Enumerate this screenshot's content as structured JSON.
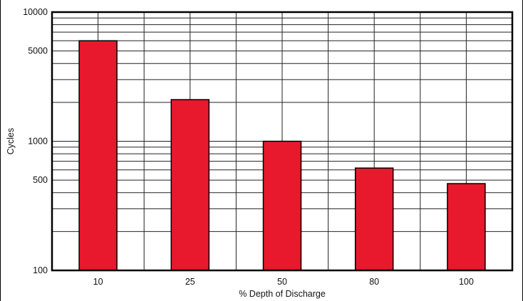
{
  "chart_data": {
    "type": "bar",
    "title": "",
    "xlabel": "% Depth of Discharge",
    "ylabel": "Cycles",
    "y_scale": "log",
    "ylim": [
      100,
      10000
    ],
    "y_tick_labels": [
      "100",
      "500",
      "1000",
      "5000",
      "10000"
    ],
    "categories": [
      "10",
      "25",
      "50",
      "80",
      "100"
    ],
    "values": [
      6000,
      2100,
      1000,
      620,
      470
    ],
    "grid": true,
    "bar_color": "#e8192c"
  }
}
